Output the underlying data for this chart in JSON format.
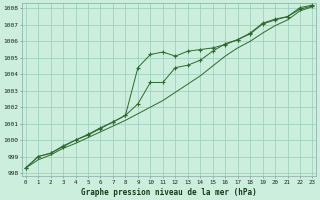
{
  "title": "Graphe pression niveau de la mer (hPa)",
  "background_color": "#cceedd",
  "grid_color": "#99ccbb",
  "line_color": "#2d6a2d",
  "marker_color": "#2d6a2d",
  "xlim": [
    -0.3,
    23.3
  ],
  "ylim": [
    997.8,
    1008.3
  ],
  "xticks": [
    0,
    1,
    2,
    3,
    4,
    5,
    6,
    7,
    8,
    9,
    10,
    11,
    12,
    13,
    14,
    15,
    16,
    17,
    18,
    19,
    20,
    21,
    22,
    23
  ],
  "yticks": [
    998,
    999,
    1000,
    1001,
    1002,
    1003,
    1004,
    1005,
    1006,
    1007,
    1008
  ],
  "series1_with_markers": [
    998.3,
    999.0,
    999.2,
    999.6,
    1000.0,
    1000.3,
    1000.7,
    1001.1,
    1001.5,
    1004.4,
    1005.2,
    1005.35,
    1005.1,
    1005.4,
    1005.5,
    1005.6,
    1005.8,
    1006.1,
    1006.5,
    1007.1,
    1007.35,
    1007.5,
    1008.05,
    1008.2
  ],
  "series2_with_markers": [
    998.3,
    999.0,
    999.2,
    999.65,
    1000.0,
    1000.35,
    1000.75,
    1001.1,
    1001.5,
    1002.2,
    1003.5,
    1003.5,
    1004.4,
    1004.55,
    1004.85,
    1005.4,
    1005.85,
    1006.1,
    1006.45,
    1007.05,
    1007.3,
    1007.5,
    1007.95,
    1008.15
  ],
  "series3_no_markers": [
    998.3,
    998.8,
    999.1,
    999.5,
    999.8,
    1000.15,
    1000.5,
    1000.85,
    1001.2,
    1001.6,
    1002.0,
    1002.4,
    1002.9,
    1003.4,
    1003.9,
    1004.5,
    1005.1,
    1005.6,
    1006.0,
    1006.5,
    1006.95,
    1007.3,
    1007.85,
    1008.1
  ]
}
